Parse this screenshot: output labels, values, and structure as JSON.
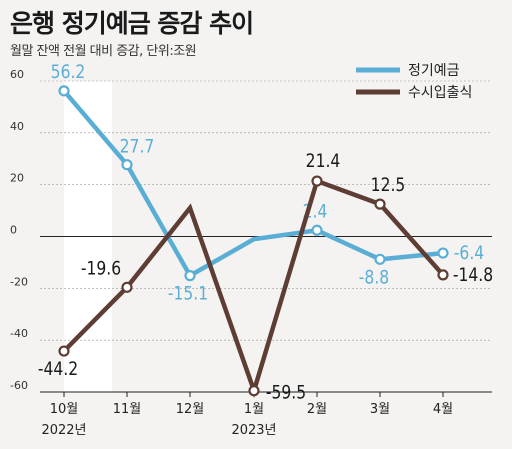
{
  "title": "은행 정기예금 증감 추이",
  "subtitle": "월말 잔액 전월 대비 증감, 단위:조원",
  "chart_data": {
    "type": "line",
    "categories": [
      "10월",
      "11월",
      "12월",
      "1월",
      "2월",
      "3월",
      "4월"
    ],
    "year_labels": [
      {
        "index": 0,
        "label": "2022년"
      },
      {
        "index": 3,
        "label": "2023년"
      }
    ],
    "ylim": [
      -60,
      60
    ],
    "yticks": [
      "-60",
      "-40",
      "-20",
      "0",
      "20",
      "40",
      "60"
    ],
    "series": [
      {
        "name": "정기예금",
        "color": "#5aaed6",
        "values": [
          56.2,
          27.7,
          -15.1,
          -1.0,
          2.4,
          -8.8,
          -6.4
        ],
        "labels": [
          "56.2",
          "27.7",
          "-15.1",
          "",
          "2.4",
          "-8.8",
          "-6.4"
        ]
      },
      {
        "name": "수시입출식",
        "color": "#5e3d34",
        "values": [
          -44.2,
          -19.6,
          11.0,
          -59.5,
          21.4,
          12.5,
          -14.8
        ],
        "labels": [
          "-44.2",
          "-19.6",
          "",
          "-59.5",
          "21.4",
          "12.5",
          "-14.8"
        ]
      }
    ],
    "legend": "top-right"
  }
}
